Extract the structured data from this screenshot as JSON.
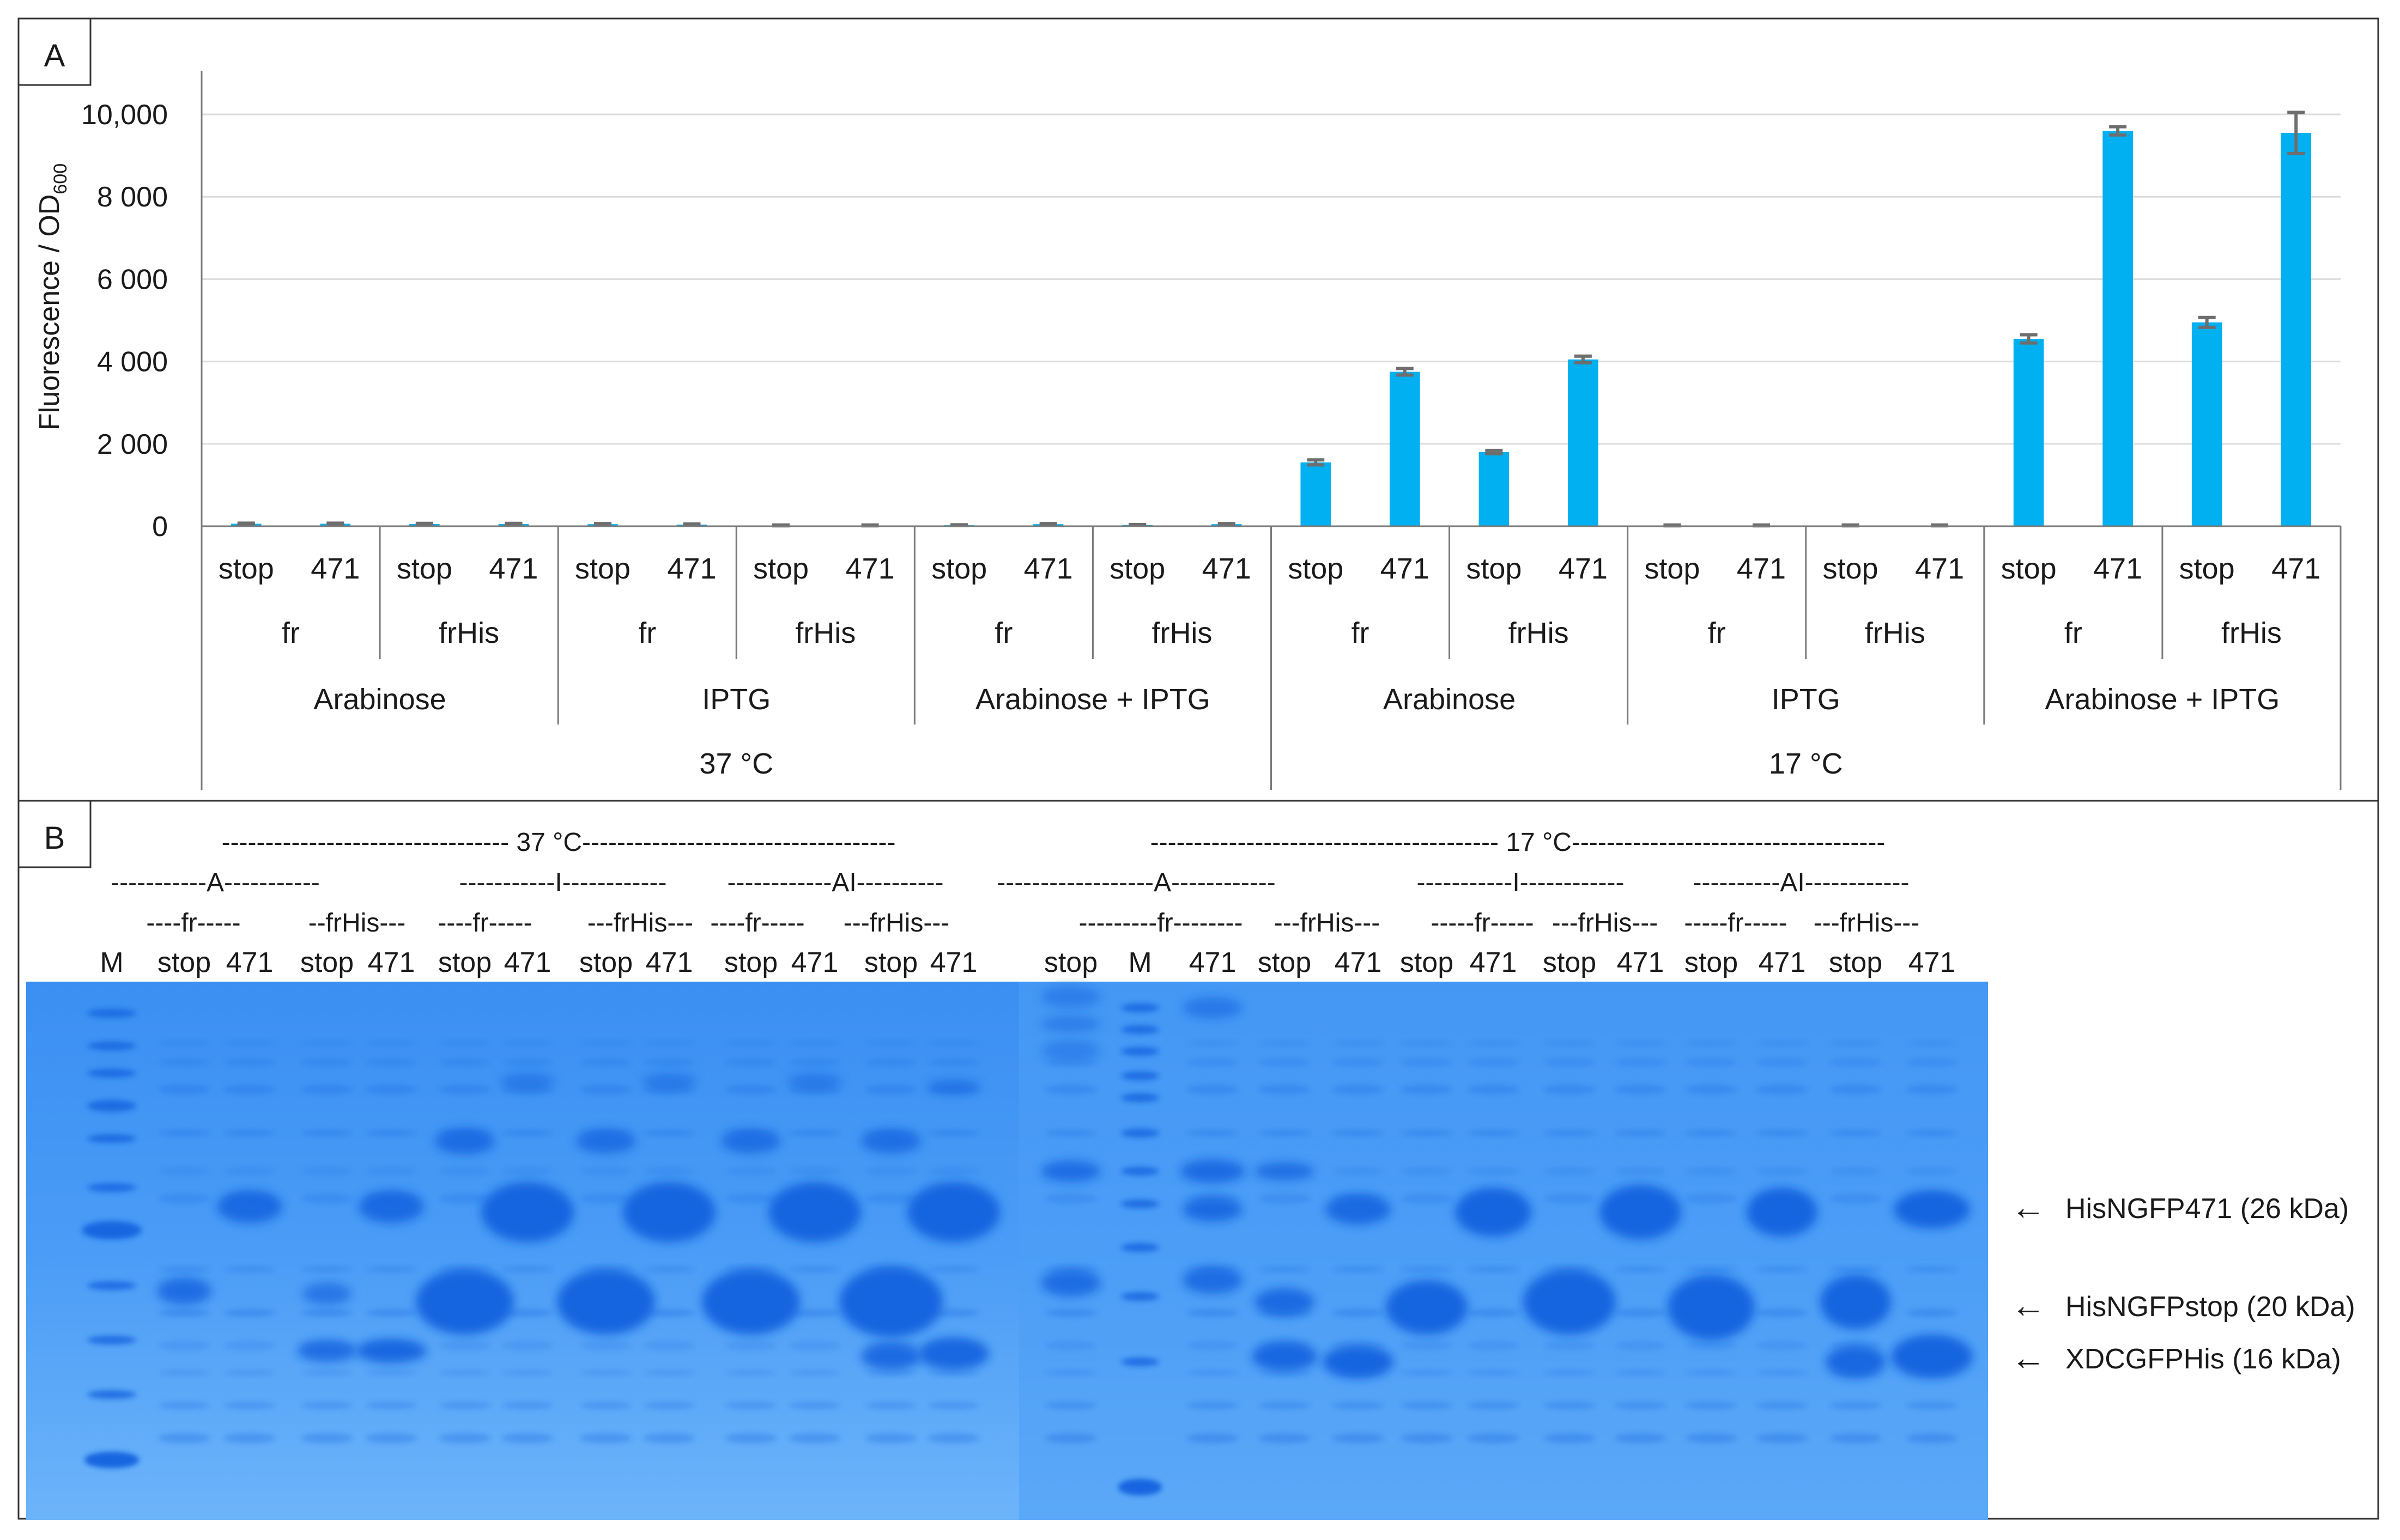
{
  "colors": {
    "bar": "#00B0F0",
    "error_bar": "#6e6e6e",
    "gel_background": "#3f97f5",
    "gel_band": "#1565e0"
  },
  "panel_a": {
    "label": "A",
    "ylabel": "Fluorescence / OD",
    "ylabel_sub": "600"
  },
  "panel_b": {
    "label": "B",
    "header_rows": [
      {
        "items": [
          "--------------------------------- 37 °C------------------------------------",
          "---------------------------------------- 17 °C------------------------------------"
        ]
      },
      {
        "items": [
          "-----------A-----------",
          "-----------I------------",
          "------------AI----------",
          "------------------A------------",
          "-----------I------------",
          "----------AI------------"
        ]
      },
      {
        "items": [
          "----fr-----",
          "--frHis---",
          "----fr-----",
          "---frHis---",
          "----fr-----",
          "---frHis---",
          "---------fr--------",
          "---frHis---",
          "-----fr-----",
          "---frHis---",
          "-----fr-----",
          "---frHis---"
        ]
      }
    ],
    "lane_labels": [
      "M",
      "stop",
      "471",
      "stop",
      "471",
      "stop",
      "471",
      "stop",
      "471",
      "stop",
      "471",
      "stop",
      "471",
      "stop",
      "M",
      "471",
      "stop",
      "471",
      "stop",
      "471",
      "stop",
      "471",
      "stop",
      "471",
      "stop",
      "471"
    ],
    "band_annotations": [
      {
        "arrow": "←",
        "label": "HisNGFP471 (26 kDa)"
      },
      {
        "arrow": "←",
        "label": "HisNGFPstop (20 kDa)"
      },
      {
        "arrow": "←",
        "label": "XDCGFPHis (16 kDa)"
      }
    ]
  },
  "chart_data": {
    "type": "bar",
    "ylabel": "Fluorescence / OD600",
    "xlabel": "",
    "ylim": [
      0,
      10000
    ],
    "yticks": [
      0,
      2000,
      4000,
      6000,
      8000,
      10000
    ],
    "ytick_labels": [
      "0",
      "2 000",
      "4 000",
      "6 000",
      "8 000",
      "10,000"
    ],
    "grid": true,
    "legend": "none",
    "categories": [
      "stop",
      "471",
      "stop",
      "471",
      "stop",
      "471",
      "stop",
      "471",
      "stop",
      "471",
      "stop",
      "471",
      "stop",
      "471",
      "stop",
      "471",
      "stop",
      "471",
      "stop",
      "471",
      "stop",
      "471",
      "stop",
      "471"
    ],
    "values": [
      60,
      60,
      55,
      55,
      50,
      40,
      20,
      20,
      25,
      50,
      30,
      50,
      1550,
      3750,
      1800,
      4050,
      20,
      20,
      20,
      20,
      4550,
      9600,
      4950,
      9550
    ],
    "errors": [
      15,
      15,
      15,
      15,
      15,
      15,
      10,
      10,
      10,
      15,
      10,
      15,
      60,
      80,
      40,
      80,
      10,
      10,
      10,
      10,
      100,
      100,
      120,
      500
    ],
    "constructs": [
      "fr",
      "frHis",
      "fr",
      "frHis",
      "fr",
      "frHis",
      "fr",
      "frHis",
      "fr",
      "frHis",
      "fr",
      "frHis"
    ],
    "inducers": [
      "Arabinose",
      "IPTG",
      "Arabinose + IPTG",
      "Arabinose",
      "IPTG",
      "Arabinose + IPTG"
    ],
    "temperatures": [
      "37 °C",
      "17 °C"
    ]
  }
}
